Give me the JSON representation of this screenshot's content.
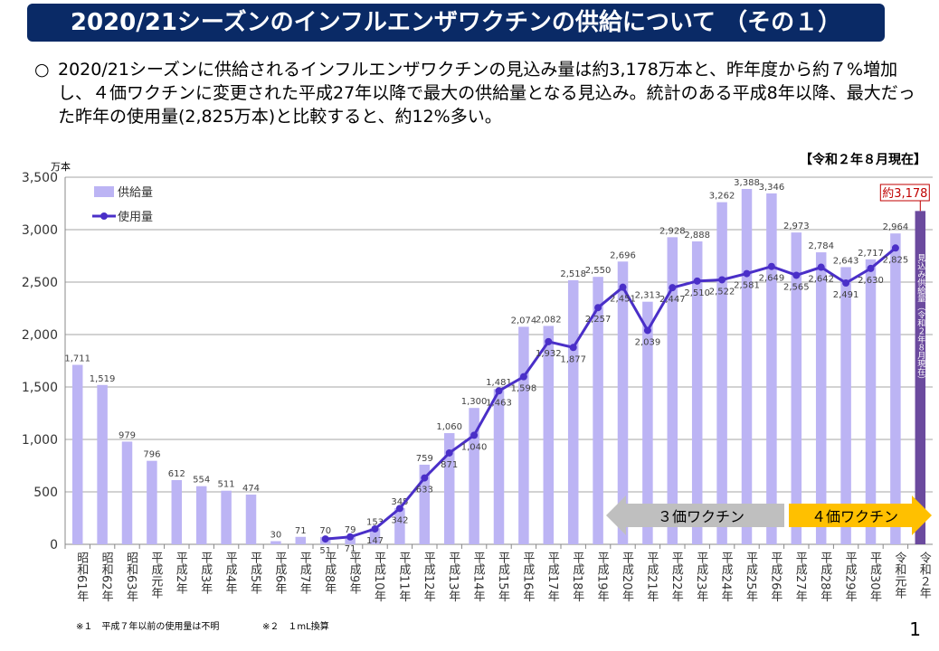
{
  "title": "2020/21シーズンのインフルエンザワクチンの供給について （その１）",
  "lead": {
    "bullet": "○",
    "text": "2020/21シーズンに供給されるインフルエンザワクチンの見込み量は約3,178万本と、昨年度から約７%増加し、４価ワクチンに変更された平成27年以降で最大の供給量となる見込み。統計のある平成8年以降、最大だった昨年の使用量(2,825万本)と比較すると、約12%多い。"
  },
  "as_of": "【令和２年８月現在】",
  "notes": [
    "※１　平成７年以前の使用量は不明",
    "※２　１mL換算"
  ],
  "page_number": "1",
  "colors": {
    "supply": "#bcb4f4",
    "usage": "#4a2fc8",
    "projected": "#6b4a9e",
    "arrow3": "#bfbfbf",
    "arrow4": "#ffc000",
    "title_bg": "#0a2a66",
    "callout": "#c00000"
  },
  "chart_data": {
    "type": "bar",
    "ylabel": "万本",
    "ylim": [
      0,
      3500
    ],
    "yticks": [
      "0",
      "500",
      "1,000",
      "1,500",
      "2,000",
      "2,500",
      "3,000",
      "3,500"
    ],
    "grid": true,
    "legend_position": "top-left",
    "categories": [
      "昭和61年",
      "昭和62年",
      "昭和63年",
      "平成元年",
      "平成2年",
      "平成3年",
      "平成4年",
      "平成5年",
      "平成6年",
      "平成7年",
      "平成8年",
      "平成9年",
      "平成10年",
      "平成11年",
      "平成12年",
      "平成13年",
      "平成14年",
      "平成15年",
      "平成16年",
      "平成17年",
      "平成18年",
      "平成19年",
      "平成20年",
      "平成21年",
      "平成22年",
      "平成23年",
      "平成24年",
      "平成25年",
      "平成26年",
      "平成27年",
      "平成28年",
      "平成29年",
      "平成30年",
      "令和元年",
      "令和２年"
    ],
    "series": [
      {
        "name": "供給量",
        "type": "bar",
        "values": [
          1711,
          1519,
          979,
          796,
          612,
          554,
          511,
          474,
          30,
          71,
          70,
          79,
          153,
          345,
          759,
          1060,
          1300,
          1481,
          2074,
          2082,
          2518,
          2550,
          2696,
          2313,
          2928,
          2888,
          3262,
          3388,
          3346,
          2973,
          2784,
          2643,
          2717,
          2964,
          null
        ],
        "labels": [
          "1,711",
          "1,519",
          "979",
          "796",
          "612",
          "554",
          "511",
          "474",
          "30",
          "71",
          "70",
          "79",
          "153",
          "345",
          "759",
          "1,060",
          "1,300",
          "1,481",
          "2,074",
          "2,082",
          "2,518",
          "2,550",
          "2,696",
          "2,313",
          "2,928",
          "2,888",
          "3,262",
          "3,388",
          "3,346",
          "2,973",
          "2,784",
          "2,643",
          "2,717",
          "2,964",
          ""
        ]
      },
      {
        "name": "使用量",
        "type": "line",
        "values": [
          null,
          null,
          null,
          null,
          null,
          null,
          null,
          null,
          null,
          null,
          51,
          71,
          147,
          342,
          633,
          871,
          1040,
          1463,
          1598,
          1932,
          1877,
          2257,
          2451,
          2039,
          2447,
          2510,
          2522,
          2581,
          2649,
          2565,
          2642,
          2491,
          2630,
          2825,
          null
        ],
        "labels": [
          "",
          "",
          "",
          "",
          "",
          "",
          "",
          "",
          "",
          "",
          "51",
          "71",
          "147",
          "342",
          "633",
          "871",
          "1,040",
          "1,463",
          "1,598",
          "1,932",
          "1,877",
          "2,257",
          "2,451",
          "2,039",
          "2,447",
          "2,510",
          "2,522",
          "2,581",
          "2,649",
          "2,565",
          "2,642",
          "2,491",
          "2,630",
          "2,825",
          ""
        ]
      }
    ],
    "projected": {
      "category": "令和２年",
      "value": 3178,
      "callout": "約3,178",
      "bar_text": "見込み供給量（令和２年８月現在）"
    },
    "annotations": [
      {
        "text": "３価ワクチン",
        "from": "平成26年",
        "to": "平成20年",
        "direction": "left"
      },
      {
        "text": "４価ワクチン",
        "from": "平成27年",
        "to": "令和２年",
        "direction": "right"
      }
    ]
  }
}
